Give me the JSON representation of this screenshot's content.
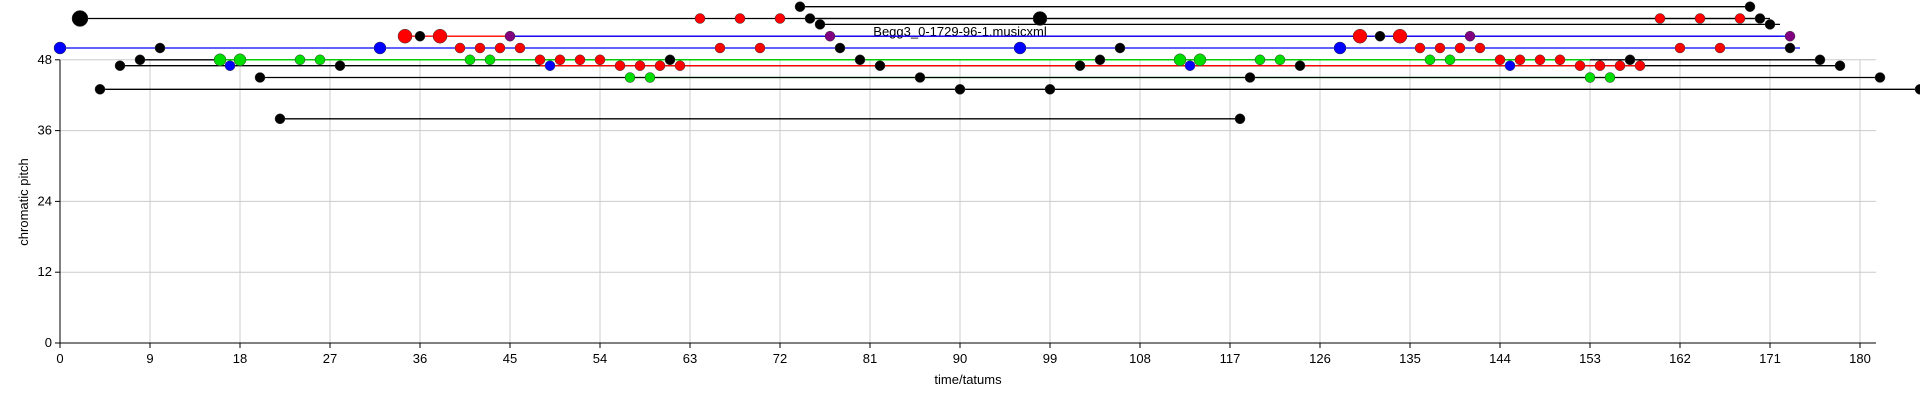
{
  "chart_data": {
    "type": "scatter",
    "title": "Begg3_0-1729-96-1.musicxml",
    "xlabel": "time/tatums",
    "ylabel": "chromatic pitch",
    "xlim": [
      0,
      186
    ],
    "ylim": [
      0,
      58
    ],
    "grid": true,
    "xticks": [
      0,
      9,
      18,
      27,
      36,
      45,
      54,
      63,
      72,
      81,
      90,
      99,
      108,
      117,
      126,
      135,
      144,
      153,
      162,
      171,
      180
    ],
    "yticks": [
      0,
      12,
      24,
      36,
      48
    ],
    "colors": {
      "black": "#000000",
      "red": "#ff0000",
      "blue": "#0000ff",
      "green": "#00dd00",
      "purple": "#800080",
      "grid": "#cccccc"
    },
    "lines": [
      {
        "color": "black",
        "x1": 2,
        "x2": 170,
        "y": 55
      },
      {
        "color": "black",
        "x1": 74,
        "x2": 169,
        "y": 57
      },
      {
        "color": "black",
        "x1": 75,
        "x2": 171,
        "y": 55
      },
      {
        "color": "black",
        "x1": 76,
        "x2": 172,
        "y": 54
      },
      {
        "color": "red",
        "x1": 34.5,
        "x2": 172,
        "y": 52
      },
      {
        "color": "blue",
        "x1": 45,
        "x2": 173,
        "y": 52
      },
      {
        "color": "blue",
        "x1": 0,
        "x2": 174,
        "y": 50
      },
      {
        "color": "black",
        "x1": 8,
        "x2": 176,
        "y": 48
      },
      {
        "color": "black",
        "x1": 6,
        "x2": 178,
        "y": 47
      },
      {
        "color": "red",
        "x1": 48,
        "x2": 158,
        "y": 47
      },
      {
        "color": "green",
        "x1": 16,
        "x2": 153,
        "y": 48
      },
      {
        "color": "green",
        "x1": 57,
        "x2": 155,
        "y": 45
      },
      {
        "color": "black",
        "x1": 20,
        "x2": 182,
        "y": 45
      },
      {
        "color": "black",
        "x1": 4,
        "x2": 186,
        "y": 43
      },
      {
        "color": "black",
        "x1": 22,
        "x2": 118,
        "y": 38
      }
    ],
    "series": [
      {
        "color": "black",
        "points": [
          [
            2,
            55,
            8
          ],
          [
            36,
            52,
            5
          ],
          [
            74,
            57,
            5
          ],
          [
            75,
            55,
            5
          ],
          [
            76,
            54,
            5
          ],
          [
            78,
            50,
            5
          ],
          [
            80,
            48,
            5
          ],
          [
            82,
            47,
            5
          ],
          [
            86,
            45,
            5
          ],
          [
            90,
            43,
            5
          ],
          [
            98,
            55,
            7
          ],
          [
            99,
            43,
            5
          ],
          [
            102,
            47,
            5
          ],
          [
            104,
            48,
            5
          ],
          [
            106,
            50,
            5
          ],
          [
            118,
            38,
            5
          ],
          [
            119,
            45,
            5
          ],
          [
            124,
            47,
            5
          ],
          [
            132,
            52,
            5
          ],
          [
            157,
            48,
            5
          ],
          [
            169,
            57,
            5
          ],
          [
            170,
            55,
            5
          ],
          [
            171,
            54,
            5
          ],
          [
            173,
            50,
            5
          ],
          [
            176,
            48,
            5
          ],
          [
            178,
            47,
            5
          ],
          [
            182,
            45,
            5
          ],
          [
            186,
            43,
            5
          ],
          [
            4,
            43,
            5
          ],
          [
            6,
            47,
            5
          ],
          [
            8,
            48,
            5
          ],
          [
            10,
            50,
            5
          ],
          [
            20,
            45,
            5
          ],
          [
            22,
            38,
            5
          ],
          [
            28,
            47,
            5
          ],
          [
            61,
            48,
            5
          ]
        ]
      },
      {
        "color": "red",
        "points": [
          [
            34.5,
            52,
            7
          ],
          [
            38,
            52,
            7
          ],
          [
            40,
            50,
            5
          ],
          [
            42,
            50,
            5
          ],
          [
            44,
            50,
            5
          ],
          [
            46,
            50,
            5
          ],
          [
            48,
            48,
            5
          ],
          [
            50,
            48,
            5
          ],
          [
            52,
            48,
            5
          ],
          [
            54,
            48,
            5
          ],
          [
            56,
            47,
            5
          ],
          [
            58,
            47,
            5
          ],
          [
            60,
            47,
            5
          ],
          [
            62,
            47,
            5
          ],
          [
            64,
            55,
            5
          ],
          [
            66,
            50,
            5
          ],
          [
            68,
            55,
            5
          ],
          [
            70,
            50,
            5
          ],
          [
            72,
            55,
            5
          ],
          [
            130,
            52,
            7
          ],
          [
            134,
            52,
            7
          ],
          [
            136,
            50,
            5
          ],
          [
            138,
            50,
            5
          ],
          [
            140,
            50,
            5
          ],
          [
            142,
            50,
            5
          ],
          [
            144,
            48,
            5
          ],
          [
            146,
            48,
            5
          ],
          [
            148,
            48,
            5
          ],
          [
            150,
            48,
            5
          ],
          [
            152,
            47,
            5
          ],
          [
            154,
            47,
            5
          ],
          [
            156,
            47,
            5
          ],
          [
            158,
            47,
            5
          ],
          [
            160,
            55,
            5
          ],
          [
            162,
            50,
            5
          ],
          [
            164,
            55,
            5
          ],
          [
            166,
            50,
            5
          ],
          [
            168,
            55,
            5
          ]
        ]
      },
      {
        "color": "blue",
        "points": [
          [
            0,
            50,
            6
          ],
          [
            17,
            47,
            5
          ],
          [
            32,
            50,
            6
          ],
          [
            49,
            47,
            5
          ],
          [
            96,
            50,
            6
          ],
          [
            113,
            47,
            5
          ],
          [
            128,
            50,
            6
          ],
          [
            145,
            47,
            5
          ]
        ]
      },
      {
        "color": "purple",
        "points": [
          [
            45,
            52,
            5
          ],
          [
            77,
            52,
            5
          ],
          [
            141,
            52,
            5
          ],
          [
            173,
            52,
            5
          ]
        ]
      },
      {
        "color": "green",
        "points": [
          [
            16,
            48,
            6
          ],
          [
            18,
            48,
            6
          ],
          [
            24,
            48,
            5
          ],
          [
            26,
            48,
            5
          ],
          [
            41,
            48,
            5
          ],
          [
            43,
            48,
            5
          ],
          [
            57,
            45,
            5
          ],
          [
            59,
            45,
            5
          ],
          [
            112,
            48,
            6
          ],
          [
            114,
            48,
            6
          ],
          [
            120,
            48,
            5
          ],
          [
            122,
            48,
            5
          ],
          [
            137,
            48,
            5
          ],
          [
            139,
            48,
            5
          ],
          [
            153,
            45,
            5
          ],
          [
            155,
            45,
            5
          ]
        ]
      }
    ]
  }
}
